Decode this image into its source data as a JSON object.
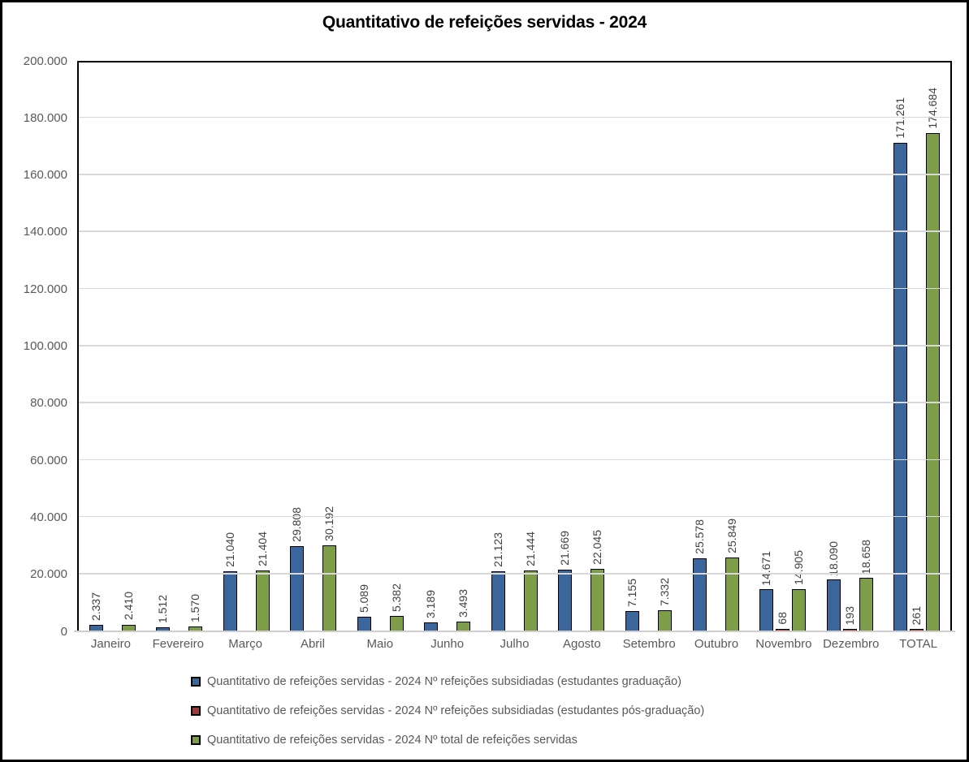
{
  "title": "Quantitativo de refeições servidas - 2024",
  "colors": {
    "background": "#FFFFFF",
    "frame_border": "#000000",
    "plot_border": "#000000",
    "gridline": "#D9D9D9",
    "axis_line": "#CFCDCD",
    "axis_text": "#595959",
    "data_label_text": "#404040",
    "series_graduacao": "#3A669C",
    "series_pos_graduacao": "#9E3B39",
    "series_total": "#7E9D49",
    "bar_outline": "#000000"
  },
  "chart_data": {
    "type": "bar",
    "title": "Quantitativo de refeições servidas - 2024",
    "categories": [
      "Janeiro",
      "Fevereiro",
      "Março",
      "Abril",
      "Maio",
      "Junho",
      "Julho",
      "Agosto",
      "Setembro",
      "Outubro",
      "Novembro",
      "Dezembro",
      "TOTAL"
    ],
    "series": [
      {
        "name": "Quantitativo de refeições servidas - 2024 Nº refeições subsidiadas (estudantes graduação)",
        "color": "#3A669C",
        "values": [
          2337,
          1512,
          21040,
          29808,
          5089,
          3189,
          21123,
          21669,
          7155,
          25578,
          14671,
          18090,
          171261
        ]
      },
      {
        "name": "Quantitativo de refeições servidas - 2024 Nº refeições subsidiadas (estudantes pós-graduação)",
        "color": "#9E3B39",
        "values": [
          0,
          0,
          0,
          0,
          0,
          0,
          0,
          0,
          0,
          0,
          68,
          193,
          261
        ]
      },
      {
        "name": "Quantitativo de refeições servidas - 2024 Nº total de refeições servidas",
        "color": "#7E9D49",
        "values": [
          2410,
          1570,
          21404,
          30192,
          5382,
          3493,
          21444,
          22045,
          7332,
          25849,
          14905,
          18658,
          174684
        ]
      }
    ],
    "xlabel": "",
    "ylabel": "",
    "ylim": [
      0,
      200000
    ],
    "ytick_step": 20000,
    "ytick_labels": [
      "0",
      "20.000",
      "40.000",
      "60.000",
      "80.000",
      "100.000",
      "120.000",
      "140.000",
      "160.000",
      "180.000",
      "200.000"
    ],
    "grid": true,
    "data_labels": "rotated 90°, thousands separated by '.', zero values not labeled",
    "legend_position": "bottom-left"
  }
}
